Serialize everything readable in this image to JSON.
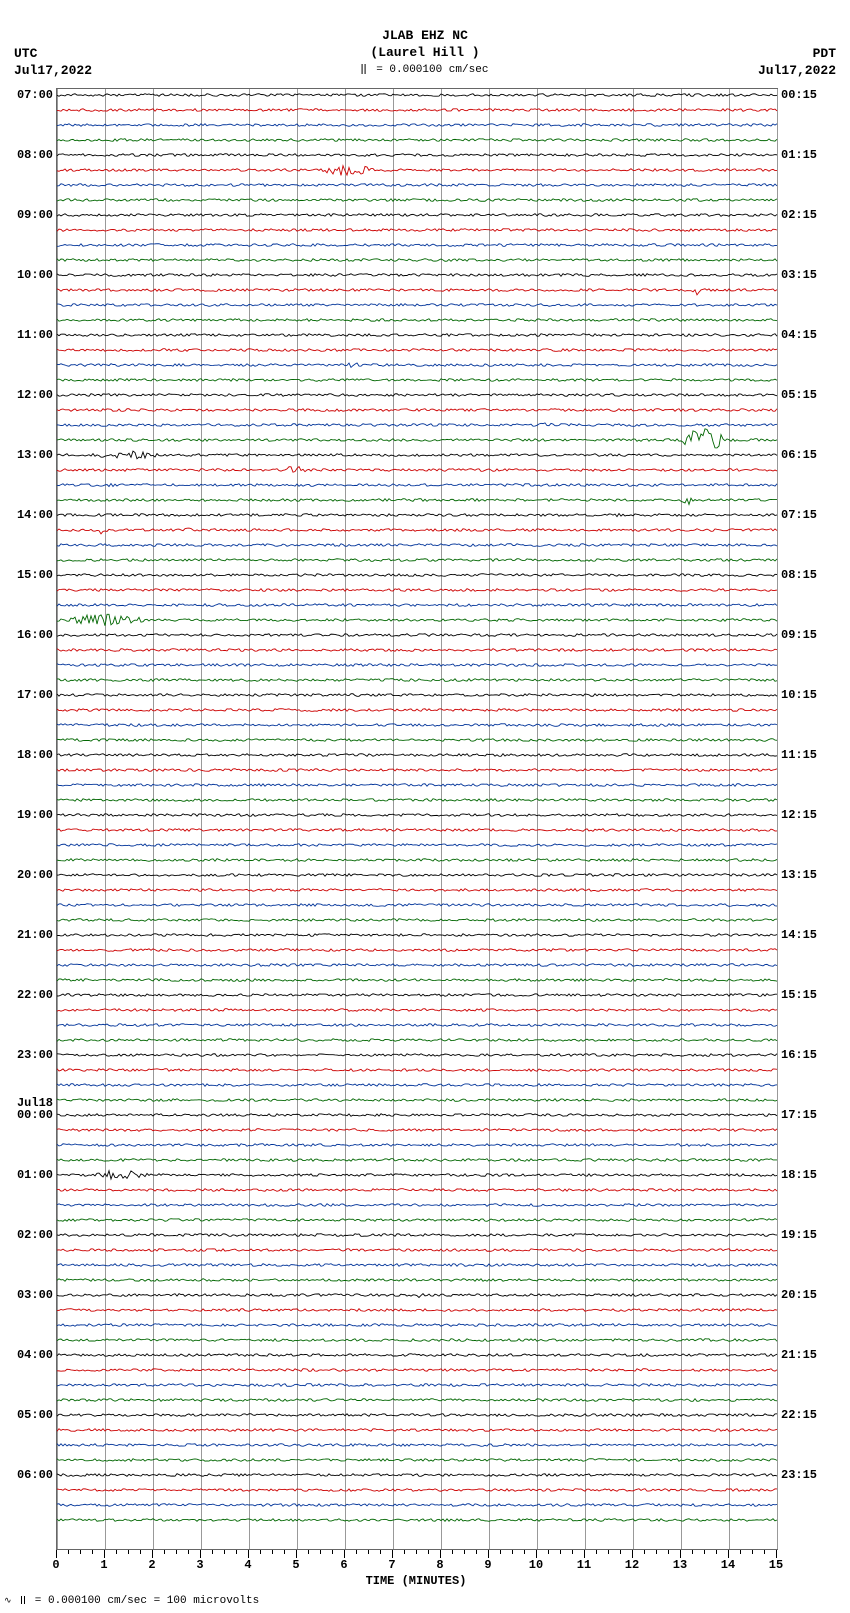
{
  "type": "seismogram-helicorder",
  "header": {
    "station": "JLAB EHZ NC",
    "location": "(Laurel Hill )",
    "scale_text": "= 0.000100 cm/sec"
  },
  "tz_left": {
    "zone": "UTC",
    "date": "Jul17,2022"
  },
  "tz_right": {
    "zone": "PDT",
    "date": "Jul17,2022"
  },
  "x_axis": {
    "label": "TIME (MINUTES)",
    "min": 0,
    "max": 15,
    "major_ticks": [
      0,
      1,
      2,
      3,
      4,
      5,
      6,
      7,
      8,
      9,
      10,
      11,
      12,
      13,
      14,
      15
    ],
    "minor_per_major": 4
  },
  "plot": {
    "background": "#ffffff",
    "grid_color": "#999999",
    "toppad": 6,
    "row_height": 15.0
  },
  "colors": {
    "cycle": [
      "#000000",
      "#cc0000",
      "#003399",
      "#006600"
    ]
  },
  "left_labels": [
    {
      "row": 0,
      "text": "07:00"
    },
    {
      "row": 4,
      "text": "08:00"
    },
    {
      "row": 8,
      "text": "09:00"
    },
    {
      "row": 12,
      "text": "10:00"
    },
    {
      "row": 16,
      "text": "11:00"
    },
    {
      "row": 20,
      "text": "12:00"
    },
    {
      "row": 24,
      "text": "13:00"
    },
    {
      "row": 28,
      "text": "14:00"
    },
    {
      "row": 32,
      "text": "15:00"
    },
    {
      "row": 36,
      "text": "16:00"
    },
    {
      "row": 40,
      "text": "17:00"
    },
    {
      "row": 44,
      "text": "18:00"
    },
    {
      "row": 48,
      "text": "19:00"
    },
    {
      "row": 52,
      "text": "20:00"
    },
    {
      "row": 56,
      "text": "21:00"
    },
    {
      "row": 60,
      "text": "22:00"
    },
    {
      "row": 64,
      "text": "23:00"
    },
    {
      "row": 68,
      "text": "00:00"
    },
    {
      "row": 72,
      "text": "01:00"
    },
    {
      "row": 76,
      "text": "02:00"
    },
    {
      "row": 80,
      "text": "03:00"
    },
    {
      "row": 84,
      "text": "04:00"
    },
    {
      "row": 88,
      "text": "05:00"
    },
    {
      "row": 92,
      "text": "06:00"
    }
  ],
  "day_separator": {
    "row": 67.2,
    "text": "Jul18"
  },
  "right_labels": [
    {
      "row": 0,
      "text": "00:15"
    },
    {
      "row": 4,
      "text": "01:15"
    },
    {
      "row": 8,
      "text": "02:15"
    },
    {
      "row": 12,
      "text": "03:15"
    },
    {
      "row": 16,
      "text": "04:15"
    },
    {
      "row": 20,
      "text": "05:15"
    },
    {
      "row": 24,
      "text": "06:15"
    },
    {
      "row": 28,
      "text": "07:15"
    },
    {
      "row": 32,
      "text": "08:15"
    },
    {
      "row": 36,
      "text": "09:15"
    },
    {
      "row": 40,
      "text": "10:15"
    },
    {
      "row": 44,
      "text": "11:15"
    },
    {
      "row": 48,
      "text": "12:15"
    },
    {
      "row": 52,
      "text": "13:15"
    },
    {
      "row": 56,
      "text": "14:15"
    },
    {
      "row": 60,
      "text": "15:15"
    },
    {
      "row": 64,
      "text": "16:15"
    },
    {
      "row": 68,
      "text": "17:15"
    },
    {
      "row": 72,
      "text": "18:15"
    },
    {
      "row": 76,
      "text": "19:15"
    },
    {
      "row": 80,
      "text": "20:15"
    },
    {
      "row": 84,
      "text": "21:15"
    },
    {
      "row": 88,
      "text": "22:15"
    },
    {
      "row": 92,
      "text": "23:15"
    }
  ],
  "traces": {
    "n_rows": 96,
    "noise_amp": 1.3,
    "events": [
      {
        "row": 5,
        "start_min": 5.4,
        "end_min": 7.2,
        "amp": 6,
        "comment": "08:15 burst"
      },
      {
        "row": 13,
        "start_min": 13.2,
        "end_min": 13.5,
        "amp": 8
      },
      {
        "row": 18,
        "start_min": 6.0,
        "end_min": 6.5,
        "amp": 3
      },
      {
        "row": 22,
        "start_min": 10.0,
        "end_min": 10.6,
        "amp": 3
      },
      {
        "row": 23,
        "start_min": 12.9,
        "end_min": 14.5,
        "amp": 12,
        "comment": "large green event ~06:00 PDT"
      },
      {
        "row": 24,
        "start_min": 0.5,
        "end_min": 3.2,
        "amp": 4
      },
      {
        "row": 25,
        "start_min": 4.6,
        "end_min": 5.6,
        "amp": 4
      },
      {
        "row": 26,
        "start_min": 1.0,
        "end_min": 1.4,
        "amp": 3
      },
      {
        "row": 27,
        "start_min": 13.0,
        "end_min": 13.4,
        "amp": 5
      },
      {
        "row": 28,
        "start_min": 11.6,
        "end_min": 12.0,
        "amp": 3
      },
      {
        "row": 29,
        "start_min": 0.8,
        "end_min": 1.2,
        "amp": 4
      },
      {
        "row": 29,
        "start_min": 2.6,
        "end_min": 3.0,
        "amp": 3
      },
      {
        "row": 35,
        "start_min": 0.0,
        "end_min": 2.8,
        "amp": 6,
        "comment": "green wavepacket before 16:00"
      },
      {
        "row": 72,
        "start_min": 0.6,
        "end_min": 2.6,
        "amp": 5,
        "comment": "01:00 burst"
      },
      {
        "row": 80,
        "start_min": 7.4,
        "end_min": 7.8,
        "amp": 3
      }
    ]
  },
  "footer": {
    "text": "= 0.000100 cm/sec =    100 microvolts"
  }
}
